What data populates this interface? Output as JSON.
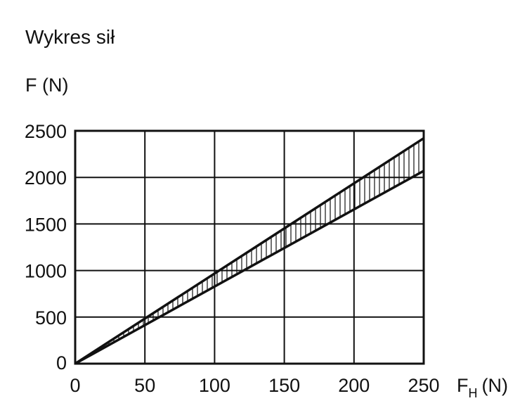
{
  "chart_data": {
    "type": "area",
    "title": "Wykres sił",
    "ylabel": "F (N)",
    "xlabel": {
      "base": "F",
      "sub": "H",
      "unit": "(N)"
    },
    "x_ticks": [
      0,
      50,
      100,
      150,
      200,
      250
    ],
    "y_ticks": [
      0,
      500,
      1000,
      1500,
      2000,
      2500
    ],
    "xlim": [
      0,
      250
    ],
    "ylim": [
      0,
      2500
    ],
    "grid": true,
    "series": [
      {
        "x": [
          0,
          250
        ],
        "values": [
          0,
          2420
        ]
      },
      {
        "x": [
          0,
          250
        ],
        "values": [
          0,
          2070
        ]
      }
    ],
    "band_fill": "vertical-hatch",
    "colors": {
      "line": "#111111",
      "grid": "#111111",
      "background": "#ffffff"
    }
  }
}
